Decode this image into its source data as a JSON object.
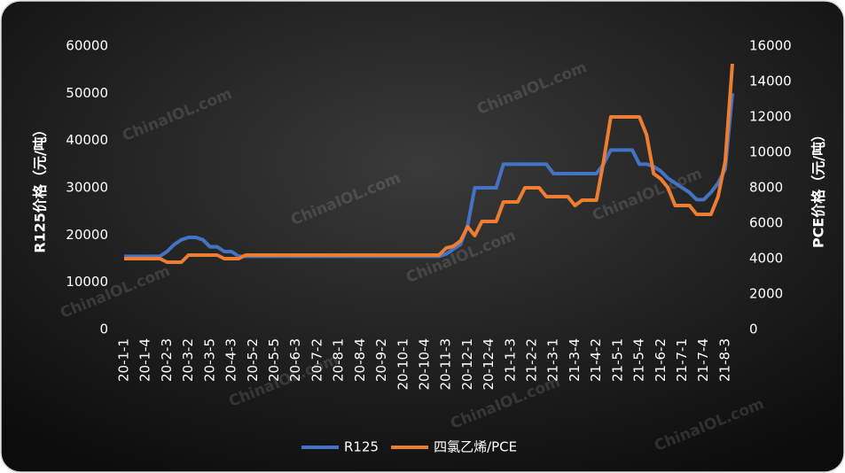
{
  "chart_data": {
    "type": "line",
    "watermark": "ChinaIOL.com",
    "ylabel": "R125价格（元/吨）",
    "y2label": "PCE价格（元/吨）",
    "ylim": [
      0,
      60000
    ],
    "yticks": [
      0,
      10000,
      20000,
      30000,
      40000,
      50000,
      60000
    ],
    "y2lim": [
      0,
      16000
    ],
    "y2ticks": [
      0,
      2000,
      4000,
      6000,
      8000,
      10000,
      12000,
      14000,
      16000
    ],
    "grid": false,
    "legend": "bottom",
    "categories": [
      "20-1-1",
      null,
      null,
      "20-1-4",
      null,
      null,
      "20-2-3",
      null,
      null,
      "20-3-2",
      null,
      null,
      "20-3-5",
      null,
      null,
      "20-4-3",
      null,
      null,
      "20-5-2",
      null,
      null,
      "20-5-5",
      null,
      null,
      "20-6-3",
      null,
      null,
      "20-7-2",
      null,
      null,
      "20-8-1",
      null,
      null,
      "20-8-4",
      null,
      null,
      "20-9-2",
      null,
      null,
      "20-10-1",
      null,
      null,
      "20-10-4",
      null,
      null,
      "20-11-3",
      null,
      null,
      "20-12-1",
      null,
      null,
      "20-12-4",
      null,
      null,
      "21-1-3",
      null,
      null,
      "21-2-2",
      null,
      null,
      "21-3-1",
      null,
      null,
      "21-3-4",
      null,
      null,
      "21-4-2",
      null,
      null,
      "21-5-1",
      null,
      null,
      "21-5-4",
      null,
      null,
      "21-6-2",
      null,
      null,
      "21-7-1",
      null,
      null,
      "21-7-4",
      null,
      null,
      "21-8-3",
      null
    ],
    "series": [
      {
        "name": "R125",
        "color": "#4472c4",
        "axis": "y",
        "values": [
          15500,
          15500,
          15500,
          15500,
          15500,
          15500,
          16500,
          18000,
          19000,
          19500,
          19500,
          19000,
          17500,
          17500,
          16500,
          16500,
          15500,
          15500,
          15500,
          15500,
          15500,
          15500,
          15500,
          15500,
          15500,
          15500,
          15500,
          15500,
          15500,
          15500,
          15500,
          15500,
          15500,
          15500,
          15500,
          15500,
          15500,
          15500,
          15500,
          15500,
          15500,
          15500,
          15500,
          15500,
          15500,
          16000,
          17000,
          18000,
          22000,
          30000,
          30000,
          30000,
          30000,
          35000,
          35000,
          35000,
          35000,
          35000,
          35000,
          35000,
          33000,
          33000,
          33000,
          33000,
          33000,
          33000,
          33000,
          35000,
          38000,
          38000,
          38000,
          38000,
          35000,
          35000,
          34500,
          33500,
          32000,
          31000,
          30000,
          29000,
          27500,
          27500,
          29000,
          31000,
          34000,
          50000
        ]
      },
      {
        "name": "四氯乙烯/PCE",
        "color": "#ed7d31",
        "axis": "y2",
        "values": [
          4000,
          4000,
          4000,
          4000,
          4000,
          4000,
          3800,
          3800,
          3800,
          4200,
          4200,
          4200,
          4200,
          4200,
          4000,
          4000,
          4000,
          4200,
          4200,
          4200,
          4200,
          4200,
          4200,
          4200,
          4200,
          4200,
          4200,
          4200,
          4200,
          4200,
          4200,
          4200,
          4200,
          4200,
          4200,
          4200,
          4200,
          4200,
          4200,
          4200,
          4200,
          4200,
          4200,
          4200,
          4200,
          4600,
          4700,
          5000,
          5800,
          5300,
          6100,
          6100,
          6100,
          7200,
          7200,
          7200,
          8000,
          8000,
          8000,
          7500,
          7500,
          7500,
          7500,
          7000,
          7300,
          7300,
          7300,
          9500,
          12000,
          12000,
          12000,
          12000,
          12000,
          11000,
          8800,
          8500,
          8000,
          7000,
          7000,
          7000,
          6500,
          6500,
          6500,
          7500,
          9500,
          15000
        ]
      }
    ]
  }
}
